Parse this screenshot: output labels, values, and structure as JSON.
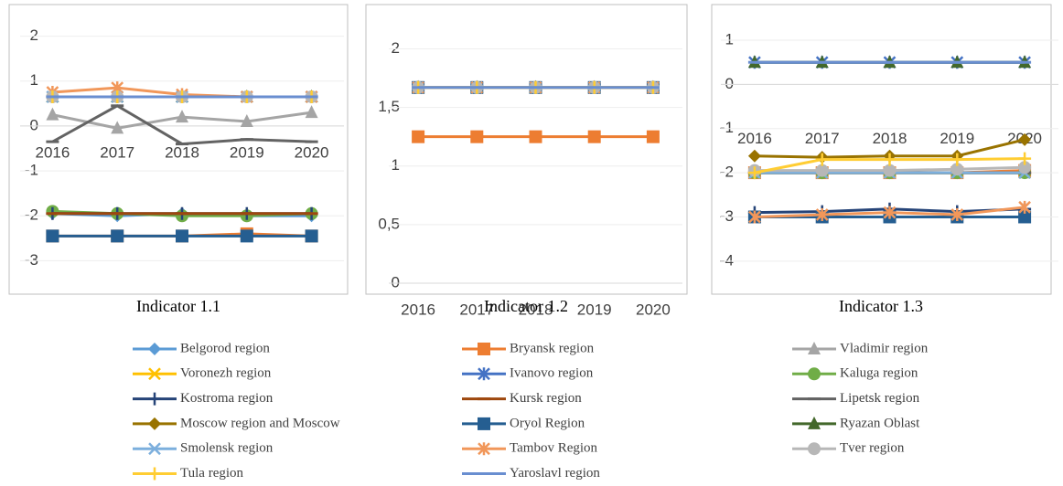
{
  "chart_data": [
    {
      "type": "line",
      "title": "Indicator 1.1",
      "categories": [
        "2016",
        "2017",
        "2018",
        "2019",
        "2020"
      ],
      "ylim": [
        -3.5,
        2.5
      ],
      "yticks": [
        -3,
        -2,
        -1,
        0,
        1,
        2
      ],
      "grid": true,
      "series": [
        {
          "name": "Belgorod region",
          "color": "#5b9bd5",
          "marker": "diamond",
          "values": [
            -1.95,
            -2,
            -1.95,
            -2,
            -2
          ]
        },
        {
          "name": "Bryansk region",
          "color": "#ed7d31",
          "marker": "square",
          "values": [
            -2.45,
            -2.45,
            -2.45,
            -2.4,
            -2.45
          ]
        },
        {
          "name": "Vladimir region",
          "color": "#a5a5a5",
          "marker": "triangle",
          "values": [
            0.25,
            -0.05,
            0.2,
            0.1,
            0.3
          ]
        },
        {
          "name": "Voronezh region",
          "color": "#ffc000",
          "marker": "x",
          "values": [
            0.65,
            0.65,
            0.65,
            0.65,
            0.65
          ]
        },
        {
          "name": "Ivanovo region",
          "color": "#4472c4",
          "marker": "star",
          "values": [
            0.65,
            0.65,
            0.65,
            0.65,
            0.65
          ]
        },
        {
          "name": "Kaluga region",
          "color": "#70ad47",
          "marker": "circle",
          "values": [
            -1.9,
            -1.95,
            -2,
            -2,
            -1.95
          ]
        },
        {
          "name": "Kostroma region",
          "color": "#264478",
          "marker": "plus",
          "values": [
            -1.95,
            -1.95,
            -1.95,
            -1.95,
            -1.95
          ]
        },
        {
          "name": "Kursk region",
          "color": "#9e480e",
          "marker": "dash",
          "values": [
            -1.95,
            -1.95,
            -1.95,
            -1.95,
            -1.95
          ]
        },
        {
          "name": "Lipetsk region",
          "color": "#636363",
          "marker": "dash",
          "values": [
            -0.35,
            0.45,
            -0.4,
            -0.3,
            -0.35
          ]
        },
        {
          "name": "Moscow region and Moscow",
          "color": "#997300",
          "marker": "diamond",
          "values": [
            0.65,
            0.65,
            0.65,
            0.65,
            0.65
          ]
        },
        {
          "name": "Oryol Region",
          "color": "#255e91",
          "marker": "square",
          "values": [
            -2.45,
            -2.45,
            -2.45,
            -2.45,
            -2.45
          ]
        },
        {
          "name": "Ryazan Oblast",
          "color": "#43682b",
          "marker": "triangle",
          "values": [
            0.65,
            0.65,
            0.65,
            0.65,
            0.65
          ]
        },
        {
          "name": "Smolensk region",
          "color": "#7cafdd",
          "marker": "x",
          "values": [
            0.65,
            0.65,
            0.65,
            0.65,
            0.65
          ]
        },
        {
          "name": "Tambov Region",
          "color": "#f1975a",
          "marker": "star",
          "values": [
            0.75,
            0.85,
            0.7,
            0.65,
            0.65
          ]
        },
        {
          "name": "Tver region",
          "color": "#b7b7b7",
          "marker": "circle",
          "values": [
            0.65,
            0.65,
            0.65,
            0.65,
            0.65
          ]
        },
        {
          "name": "Tula region",
          "color": "#ffcd33",
          "marker": "plus",
          "values": [
            0.65,
            0.65,
            0.65,
            0.65,
            0.65
          ]
        },
        {
          "name": "Yaroslavl region",
          "color": "#698ed0",
          "marker": "dash",
          "values": [
            0.65,
            0.65,
            0.65,
            0.65,
            0.65
          ]
        }
      ]
    },
    {
      "type": "line",
      "title": "Indicator 1.2",
      "categories": [
        "2016",
        "2017",
        "2018",
        "2019",
        "2020"
      ],
      "ylim": [
        0,
        2.3
      ],
      "yticks": [
        0,
        {
          "value": 0.5,
          "label": "0,5"
        },
        1,
        {
          "value": 1.5,
          "label": "1,5"
        },
        2
      ],
      "grid": true,
      "series": [
        {
          "values": [
            1.67,
            1.67,
            1.67,
            1.67,
            1.67
          ]
        },
        {
          "values": [
            1.25,
            1.25,
            1.25,
            1.25,
            1.25
          ]
        },
        {
          "values": [
            1.67,
            1.67,
            1.67,
            1.67,
            1.67
          ]
        },
        {
          "values": [
            1.67,
            1.67,
            1.67,
            1.67,
            1.67
          ]
        },
        {
          "values": [
            1.67,
            1.67,
            1.67,
            1.67,
            1.67
          ]
        },
        {
          "values": [
            1.67,
            1.67,
            1.67,
            1.67,
            1.67
          ]
        },
        {
          "values": [
            1.67,
            1.67,
            1.67,
            1.67,
            1.67
          ]
        },
        {
          "values": [
            1.67,
            1.67,
            1.67,
            1.67,
            1.67
          ]
        },
        {
          "values": [
            1.67,
            1.67,
            1.67,
            1.67,
            1.67
          ]
        },
        {
          "values": [
            1.67,
            1.67,
            1.67,
            1.67,
            1.67
          ]
        },
        {
          "values": [
            1.67,
            1.67,
            1.67,
            1.67,
            1.67
          ]
        },
        {
          "values": [
            1.67,
            1.67,
            1.67,
            1.67,
            1.67
          ]
        },
        {
          "values": [
            1.67,
            1.67,
            1.67,
            1.67,
            1.67
          ]
        },
        {
          "values": [
            1.67,
            1.67,
            1.67,
            1.67,
            1.67
          ]
        },
        {
          "values": [
            1.67,
            1.67,
            1.67,
            1.67,
            1.67
          ]
        },
        {
          "values": [
            1.67,
            1.67,
            1.67,
            1.67,
            1.67
          ]
        },
        {
          "values": [
            1.67,
            1.67,
            1.67,
            1.67,
            1.67
          ]
        }
      ]
    },
    {
      "type": "line",
      "title": "Indicator 1.3",
      "categories": [
        "2016",
        "2017",
        "2018",
        "2019",
        "2020"
      ],
      "ylim": [
        -4.5,
        1.6
      ],
      "yticks": [
        -4,
        -3,
        -2,
        -1,
        0,
        1
      ],
      "grid": true,
      "series": [
        {
          "values": [
            -2,
            -2,
            -2,
            -2,
            -2
          ]
        },
        {
          "values": [
            -2,
            -2,
            -2,
            -2,
            -1.95
          ]
        },
        {
          "values": [
            -2,
            -2,
            -2,
            -2,
            -2
          ]
        },
        {
          "values": [
            -2,
            -2,
            -2,
            -2,
            -2
          ]
        },
        {
          "values": [
            0.5,
            0.5,
            0.5,
            0.5,
            0.5
          ]
        },
        {
          "values": [
            -2,
            -2,
            -2,
            -2,
            -2
          ]
        },
        {
          "values": [
            -2.9,
            -2.88,
            -2.82,
            -2.88,
            -2.82
          ]
        },
        {
          "values": [
            -2,
            -2,
            -2,
            -2,
            -2
          ]
        },
        {
          "values": [
            -2,
            -2,
            -2,
            -2,
            -2
          ]
        },
        {
          "values": [
            -1.62,
            -1.65,
            -1.62,
            -1.62,
            -1.25
          ]
        },
        {
          "values": [
            -3,
            -3,
            -3,
            -3,
            -3
          ]
        },
        {
          "values": [
            0.5,
            0.5,
            0.5,
            0.5,
            0.5
          ]
        },
        {
          "values": [
            -2,
            -2,
            -2,
            -2,
            -2
          ]
        },
        {
          "values": [
            -3,
            -2.95,
            -2.9,
            -2.95,
            -2.78
          ]
        },
        {
          "values": [
            -1.95,
            -1.95,
            -1.95,
            -1.92,
            -1.88
          ]
        },
        {
          "values": [
            -2,
            -1.7,
            -1.7,
            -1.7,
            -1.68
          ]
        },
        {
          "values": [
            0.5,
            0.5,
            0.5,
            0.5,
            0.5
          ]
        }
      ]
    }
  ]
}
